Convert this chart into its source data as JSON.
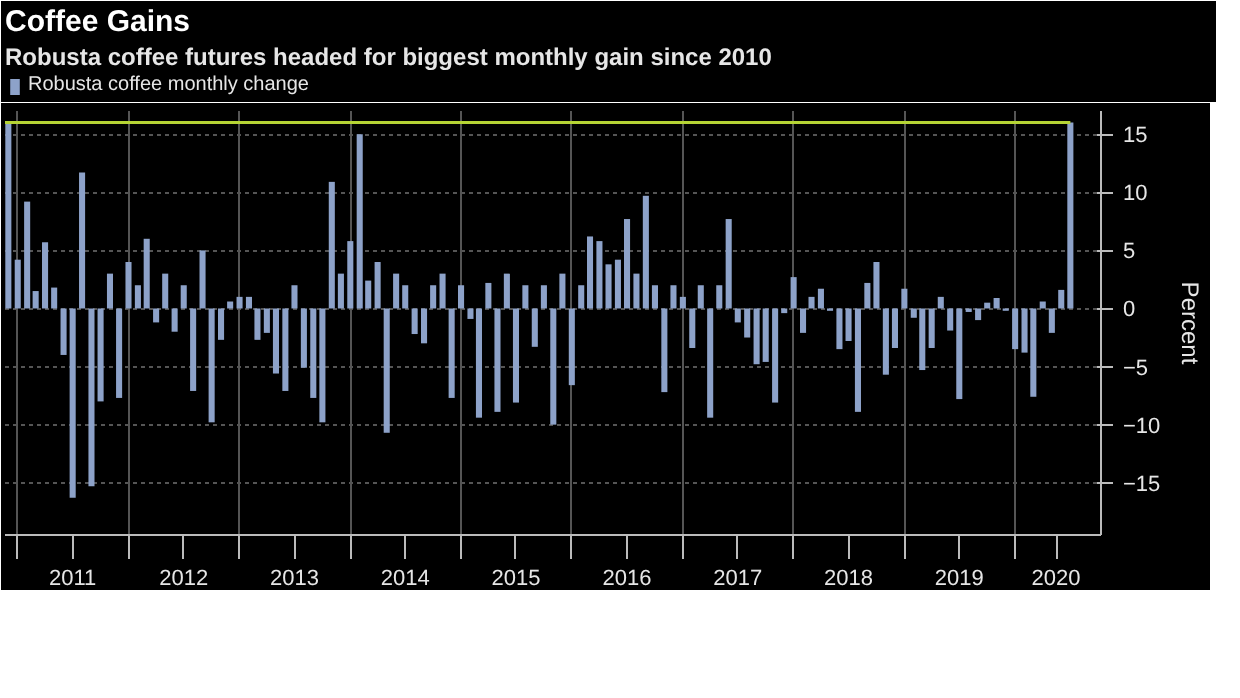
{
  "chart_data": {
    "type": "bar",
    "title": "Coffee Gains",
    "subtitle": "Robusta coffee futures headed for biggest monthly gain since 2010",
    "ylabel": "Percent",
    "x": [
      "2010-12",
      "2011-01",
      "2011-02",
      "2011-03",
      "2011-04",
      "2011-05",
      "2011-06",
      "2011-07",
      "2011-08",
      "2011-09",
      "2011-10",
      "2011-11",
      "2011-12",
      "2012-01",
      "2012-02",
      "2012-03",
      "2012-04",
      "2012-05",
      "2012-06",
      "2012-07",
      "2012-08",
      "2012-09",
      "2012-10",
      "2012-11",
      "2012-12",
      "2013-01",
      "2013-02",
      "2013-03",
      "2013-04",
      "2013-05",
      "2013-06",
      "2013-07",
      "2013-08",
      "2013-09",
      "2013-10",
      "2013-11",
      "2013-12",
      "2014-01",
      "2014-02",
      "2014-03",
      "2014-04",
      "2014-05",
      "2014-06",
      "2014-07",
      "2014-08",
      "2014-09",
      "2014-10",
      "2014-11",
      "2014-12",
      "2015-01",
      "2015-02",
      "2015-03",
      "2015-04",
      "2015-05",
      "2015-06",
      "2015-07",
      "2015-08",
      "2015-09",
      "2015-10",
      "2015-11",
      "2015-12",
      "2016-01",
      "2016-02",
      "2016-03",
      "2016-04",
      "2016-05",
      "2016-06",
      "2016-07",
      "2016-08",
      "2016-09",
      "2016-10",
      "2016-11",
      "2016-12",
      "2017-01",
      "2017-02",
      "2017-03",
      "2017-04",
      "2017-05",
      "2017-06",
      "2017-07",
      "2017-08",
      "2017-09",
      "2017-10",
      "2017-11",
      "2017-12",
      "2018-01",
      "2018-02",
      "2018-03",
      "2018-04",
      "2018-05",
      "2018-06",
      "2018-07",
      "2018-08",
      "2018-09",
      "2018-10",
      "2018-11",
      "2018-12",
      "2019-01",
      "2019-02",
      "2019-03",
      "2019-04",
      "2019-05",
      "2019-06",
      "2019-07",
      "2019-08",
      "2019-09",
      "2019-10",
      "2019-11",
      "2019-12",
      "2020-01",
      "2020-02",
      "2020-03",
      "2020-04",
      "2020-05",
      "2020-06",
      "2020-07"
    ],
    "series": [
      {
        "name": "Robusta coffee monthly change",
        "color": "#8da2c9",
        "values": [
          16,
          4.2,
          9.2,
          1.5,
          5.7,
          1.8,
          -4.0,
          -16.3,
          11.7,
          -15.3,
          -8.0,
          3,
          -7.7,
          4,
          2,
          6,
          -1.2,
          3,
          -2,
          2,
          -7.1,
          5,
          -9.8,
          -2.7,
          0.6,
          1,
          1,
          -2.7,
          -2.1,
          -5.6,
          -7.1,
          2,
          -5.1,
          -7.7,
          -9.8,
          10.9,
          3,
          5.8,
          15,
          2.4,
          4,
          -10.7,
          3,
          2,
          -2.2,
          -3,
          2,
          3,
          -7.7,
          2,
          -0.9,
          -9.4,
          2.2,
          -8.9,
          3,
          -8.1,
          2,
          -3.3,
          2,
          -10,
          3,
          -6.6,
          2,
          6.2,
          5.8,
          3.8,
          4.2,
          7.7,
          3,
          9.7,
          2,
          -7.2,
          2,
          1,
          -3.4,
          2,
          -9.4,
          2,
          7.7,
          -1.2,
          -2.5,
          -4.8,
          -4.6,
          -8.1,
          -0.4,
          2.7,
          -2.1,
          1,
          1.7,
          -0.2,
          -3.5,
          -2.8,
          -8.9,
          2.2,
          4.0,
          -5.7,
          -3.4,
          1.7,
          -0.8,
          -5.3,
          -3.4,
          1,
          -1.9,
          -7.8,
          -0.3,
          -1.0,
          0.5,
          0.9,
          -0.2,
          -3.5,
          -3.8,
          -7.6,
          0.6,
          -2.1,
          1.6,
          16.0
        ]
      }
    ],
    "xlim": [
      "2010-11-20",
      "2020-10-10"
    ],
    "xticks": [
      {
        "value": "2011-01-01",
        "label": null
      },
      {
        "value": "2012-01-01",
        "label": null
      },
      {
        "value": "2013-01-01",
        "label": null
      },
      {
        "value": "2014-01-01",
        "label": null
      },
      {
        "value": "2015-01-01",
        "label": null
      },
      {
        "value": "2016-01-01",
        "label": null
      },
      {
        "value": "2017-01-01",
        "label": null
      },
      {
        "value": "2018-01-01",
        "label": null
      },
      {
        "value": "2019-01-01",
        "label": null
      },
      {
        "value": "2020-01-01",
        "label": null
      },
      {
        "value": "2011-07-01",
        "label": "2011"
      },
      {
        "value": "2012-07-01",
        "label": "2012"
      },
      {
        "value": "2013-07-01",
        "label": "2013"
      },
      {
        "value": "2014-07-01",
        "label": "2014"
      },
      {
        "value": "2015-07-01",
        "label": "2015"
      },
      {
        "value": "2016-07-01",
        "label": "2016"
      },
      {
        "value": "2017-07-01",
        "label": "2017"
      },
      {
        "value": "2018-07-01",
        "label": "2018"
      },
      {
        "value": "2019-07-01",
        "label": "2019"
      },
      {
        "value": "2020-05-15",
        "label": "2020"
      }
    ],
    "ylim": [
      -19.5,
      17
    ],
    "yticks": [
      -15,
      -10,
      -5,
      0,
      5,
      10,
      15
    ],
    "ref_lines": [
      {
        "axis": "y",
        "value": 16,
        "color": "#b5d334"
      }
    ],
    "grid": true,
    "legend": "top left"
  }
}
